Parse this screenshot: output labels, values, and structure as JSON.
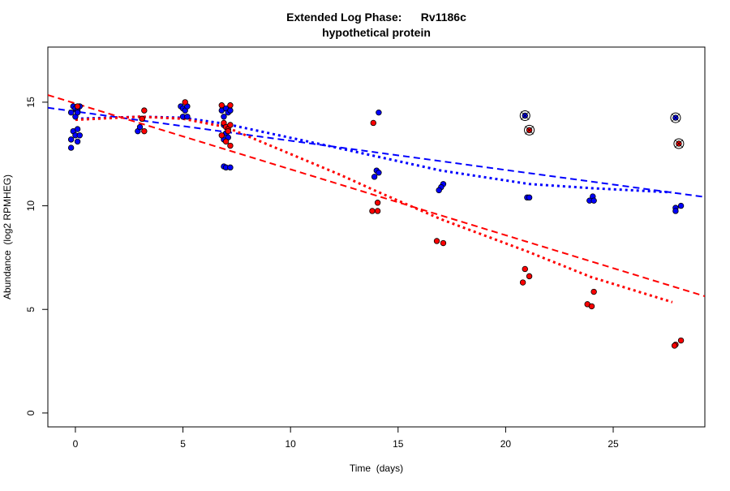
{
  "chart_data": {
    "type": "scatter",
    "title_line1": "Extended Log Phase:      Rv1186c",
    "title_line2": "hypothetical protein",
    "xlabel": "Time  (days)",
    "ylabel": "Abundance  (log2 RPMHEG)",
    "xlim": [
      -1.28,
      29.26
    ],
    "ylim": [
      -0.67,
      17.66
    ],
    "xticks": [
      0,
      5,
      10,
      15,
      20,
      25
    ],
    "yticks": [
      0,
      5,
      10,
      15
    ],
    "grid": false,
    "colors": {
      "blue": "#0000ff",
      "red": "#ff0000"
    },
    "series": [
      {
        "color": "#0000ff",
        "points": [
          [
            -0.1,
            14.8
          ],
          [
            0,
            14.7
          ],
          [
            0.1,
            14.6
          ],
          [
            0.2,
            14.8
          ],
          [
            -0.2,
            14.5
          ],
          [
            0,
            14.3
          ],
          [
            0.1,
            14.5
          ],
          [
            -0.1,
            13.6
          ],
          [
            0.1,
            13.7
          ],
          [
            0,
            13.4
          ],
          [
            -0.2,
            13.2
          ],
          [
            0.1,
            13.1
          ],
          [
            -0.2,
            12.8
          ],
          [
            0.2,
            13.4
          ],
          [
            2.9,
            13.6
          ],
          [
            3.0,
            13.8
          ],
          [
            3.1,
            14.2
          ],
          [
            4.9,
            14.8
          ],
          [
            5.0,
            14.7
          ],
          [
            5.1,
            14.6
          ],
          [
            5.2,
            14.8
          ],
          [
            5.0,
            14.3
          ],
          [
            5.2,
            14.3
          ],
          [
            6.8,
            14.6
          ],
          [
            6.9,
            14.3
          ],
          [
            7.0,
            14.7
          ],
          [
            7.1,
            14.5
          ],
          [
            7.2,
            14.6
          ],
          [
            6.9,
            13.9
          ],
          [
            7.0,
            13.5
          ],
          [
            6.9,
            13.2
          ],
          [
            7.1,
            13.3
          ],
          [
            6.9,
            11.9
          ],
          [
            7.0,
            11.85
          ],
          [
            7.2,
            11.85
          ],
          [
            14.1,
            14.5
          ],
          [
            14.0,
            11.7
          ],
          [
            14.1,
            11.6
          ],
          [
            13.9,
            11.4
          ],
          [
            17.1,
            11.05
          ],
          [
            17.0,
            10.9
          ],
          [
            16.9,
            10.75
          ],
          [
            21.0,
            10.4
          ],
          [
            21.1,
            10.4
          ],
          [
            24.05,
            10.45
          ],
          [
            23.9,
            10.25
          ],
          [
            24.1,
            10.25
          ],
          [
            27.9,
            9.9
          ],
          [
            27.9,
            9.75
          ],
          [
            28.15,
            10.0
          ]
        ],
        "outliers": [
          [
            20.9,
            14.35
          ],
          [
            27.9,
            14.25
          ]
        ],
        "linear_fit": {
          "intercept": 14.55,
          "slope": -0.141
        },
        "smooth": [
          [
            0,
            14.2
          ],
          [
            3,
            14.3
          ],
          [
            5,
            14.25
          ],
          [
            7,
            13.95
          ],
          [
            12.3,
            12.77
          ],
          [
            17,
            11.7
          ],
          [
            21.1,
            11.05
          ],
          [
            24,
            10.85
          ],
          [
            27.7,
            10.65
          ]
        ]
      },
      {
        "color": "#ff0000",
        "points": [
          [
            0.1,
            14.8
          ],
          [
            3.2,
            14.6
          ],
          [
            3.1,
            14.2
          ],
          [
            3.2,
            13.6
          ],
          [
            5.1,
            15.0
          ],
          [
            6.8,
            14.85
          ],
          [
            7.2,
            14.85
          ],
          [
            6.9,
            14.0
          ],
          [
            7.0,
            13.8
          ],
          [
            7.1,
            13.7
          ],
          [
            7.2,
            13.9
          ],
          [
            6.8,
            13.4
          ],
          [
            7.0,
            13.1
          ],
          [
            7.2,
            12.9
          ],
          [
            7.1,
            13.6
          ],
          [
            13.85,
            14.0
          ],
          [
            14.05,
            10.15
          ],
          [
            13.8,
            9.75
          ],
          [
            14.05,
            9.75
          ],
          [
            16.8,
            8.3
          ],
          [
            17.1,
            8.2
          ],
          [
            20.9,
            6.95
          ],
          [
            21.1,
            6.6
          ],
          [
            20.8,
            6.3
          ],
          [
            24.1,
            5.85
          ],
          [
            23.8,
            5.25
          ],
          [
            24.0,
            5.15
          ],
          [
            28.15,
            3.5
          ],
          [
            27.9,
            3.3
          ],
          [
            27.85,
            3.25
          ]
        ],
        "outliers": [
          [
            21.1,
            13.65
          ],
          [
            28.05,
            13.0
          ]
        ],
        "linear_fit": {
          "intercept": 14.94,
          "slope": -0.318
        },
        "smooth": [
          [
            0,
            14.15
          ],
          [
            3,
            14.3
          ],
          [
            5,
            14.2
          ],
          [
            7,
            13.8
          ],
          [
            12.3,
            11.5
          ],
          [
            14,
            10.7
          ],
          [
            17,
            9.35
          ],
          [
            21,
            7.8
          ],
          [
            24,
            6.55
          ],
          [
            27.75,
            5.35
          ]
        ]
      }
    ]
  }
}
